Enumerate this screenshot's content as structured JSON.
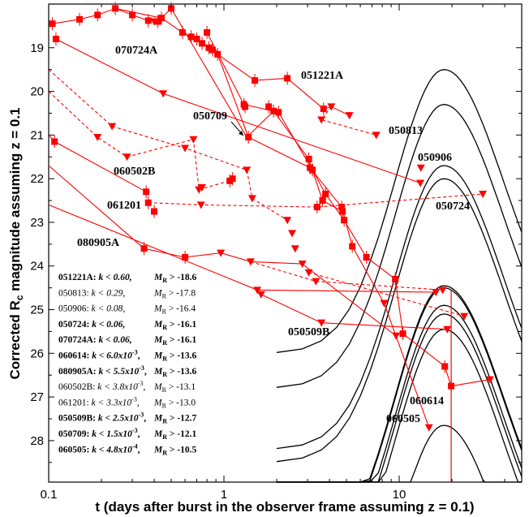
{
  "chart_data": {
    "type": "scatter",
    "xlabel": "t (days after burst in the observer frame assuming z = 0.1)",
    "ylabel": "Corrected R_c magnitude assuming z = 0.1",
    "x_scale": "log",
    "y_inverted": true,
    "xlim": [
      0.1,
      50
    ],
    "ylim": [
      28.95,
      18.0
    ],
    "x_ticks": [
      0.1,
      1,
      10
    ],
    "x_tick_labels": [
      "0.1",
      "1",
      "10"
    ],
    "y_ticks": [
      19,
      20,
      21,
      22,
      23,
      24,
      25,
      26,
      27,
      28
    ],
    "y_tick_labels": [
      "19",
      "20",
      "21",
      "22",
      "23",
      "24",
      "25",
      "26",
      "27",
      "28"
    ],
    "marker_color": "#ff0000",
    "model_color": "#000000",
    "detections": [
      [
        0.105,
        18.45
      ],
      [
        0.15,
        18.35
      ],
      [
        0.19,
        18.25
      ],
      [
        0.24,
        18.1
      ],
      [
        0.3,
        18.25
      ],
      [
        0.37,
        18.38
      ],
      [
        0.42,
        18.4
      ],
      [
        0.44,
        18.32
      ],
      [
        0.5,
        18.1
      ],
      [
        0.58,
        18.65
      ],
      [
        0.65,
        18.75
      ],
      [
        0.7,
        18.8
      ],
      [
        0.75,
        18.9
      ],
      [
        0.8,
        18.65
      ],
      [
        0.82,
        19.0
      ],
      [
        0.86,
        19.05
      ],
      [
        0.92,
        19.15
      ],
      [
        1.5,
        19.75
      ],
      [
        2.3,
        19.7
      ],
      [
        3.7,
        20.4
      ],
      [
        0.11,
        18.8
      ],
      [
        1.3,
        20.3
      ],
      [
        1.32,
        20.35
      ],
      [
        1.8,
        20.35
      ],
      [
        1.92,
        20.45
      ],
      [
        2.05,
        20.48
      ],
      [
        1.38,
        21.05
      ],
      [
        3.1,
        21.75
      ],
      [
        3.2,
        21.8
      ],
      [
        3.05,
        21.55
      ],
      [
        3.8,
        22.35
      ],
      [
        3.65,
        22.5
      ],
      [
        4.7,
        22.65
      ],
      [
        4.75,
        22.75
      ],
      [
        4.85,
        22.95
      ],
      [
        5.4,
        23.55
      ],
      [
        6.5,
        23.8
      ],
      [
        9.5,
        24.3
      ],
      [
        0.108,
        21.15
      ],
      [
        0.36,
        22.3
      ],
      [
        0.37,
        22.55
      ],
      [
        0.4,
        22.75
      ],
      [
        1.08,
        22.05
      ],
      [
        1.12,
        22.0
      ],
      [
        0.35,
        23.6
      ],
      [
        0.6,
        23.8
      ],
      [
        3.4,
        22.65
      ],
      [
        10.5,
        25.55
      ],
      [
        18.2,
        26.3
      ],
      [
        19.8,
        26.75
      ]
    ],
    "upper_limits": [
      [
        0.23,
        20.8
      ],
      [
        0.45,
        20.05
      ],
      [
        0.6,
        21.3
      ],
      [
        1.35,
        21.8
      ],
      [
        1.45,
        22.45
      ],
      [
        2.3,
        22.95
      ],
      [
        2.45,
        23.25
      ],
      [
        2.55,
        23.6
      ],
      [
        2.8,
        23.95
      ],
      [
        3.05,
        24.15
      ],
      [
        3.35,
        24.35
      ],
      [
        0.19,
        21.05
      ],
      [
        0.28,
        21.5
      ],
      [
        0.67,
        21.1
      ],
      [
        0.72,
        22.25
      ],
      [
        0.75,
        22.2
      ],
      [
        0.74,
        22.6
      ],
      [
        0.96,
        23.7
      ],
      [
        1.42,
        23.9
      ],
      [
        1.55,
        24.55
      ],
      [
        1.63,
        24.65
      ],
      [
        3.6,
        25.3
      ],
      [
        8.2,
        24.85
      ],
      [
        9.6,
        25.6
      ],
      [
        14.8,
        27.7
      ],
      [
        16.2,
        24.6
      ],
      [
        17.7,
        24.55
      ],
      [
        18.8,
        25.45
      ],
      [
        23.5,
        25.15
      ],
      [
        33.0,
        26.6
      ],
      [
        4.1,
        20.35
      ],
      [
        3.6,
        20.65
      ],
      [
        5.2,
        20.55
      ],
      [
        7.4,
        21.0
      ],
      [
        13.2,
        22.1
      ],
      [
        13.3,
        21.75
      ],
      [
        30.0,
        22.35
      ],
      [
        0.4,
        18.4
      ]
    ],
    "grb_labels": [
      "070724A",
      "051221A",
      "050709",
      "050813",
      "050906",
      "060502B",
      "061201",
      "050724",
      "080905A",
      "050509B",
      "060614",
      "060505"
    ],
    "legend": [
      {
        "name": "051221A:",
        "k": "k < 0.60,",
        "m": "M",
        "msub": "R",
        "mval": " > -18.6",
        "bold": true
      },
      {
        "name": "050813:",
        "k": "k < 0.29,",
        "m": "M",
        "msub": "R",
        "mval": " > -17.8",
        "bold": false
      },
      {
        "name": "050906:",
        "k": "k < 0.08,",
        "m": "M",
        "msub": "R",
        "mval": " > -16.4",
        "bold": false
      },
      {
        "name": "050724:",
        "k": "k < 0.06,",
        "m": "M",
        "msub": "R",
        "mval": " > -16.1",
        "bold": true
      },
      {
        "name": "070724A:",
        "k": "k < 0.06,",
        "m": "M",
        "msub": "R",
        "mval": " > -16.1",
        "bold": true
      },
      {
        "name": "060614:",
        "k": "k < 6.0x10",
        "ksup": "-3",
        "m": "M",
        "msub": "R",
        "mval": " > -13.6",
        "bold": true
      },
      {
        "name": "080905A:",
        "k": "k < 5.5x10",
        "ksup": "-3",
        "m": "M",
        "msub": "R",
        "mval": " > -13.6",
        "bold": true
      },
      {
        "name": "060502B:",
        "k": "k < 3.8x10",
        "ksup": "-3",
        "m": "M",
        "msub": "R",
        "mval": " > -13.1",
        "bold": false
      },
      {
        "name": "061201:",
        "k": "k < 3.3x10",
        "ksup": "-3",
        "m": "M",
        "msub": "R",
        "mval": " > -13.0",
        "bold": false
      },
      {
        "name": "050509B:",
        "k": "k < 2.5x10",
        "ksup": "-3",
        "m": "M",
        "msub": "R",
        "mval": " > -12.7",
        "bold": true
      },
      {
        "name": "050709:",
        "k": "k < 1.5x10",
        "ksup": "-3",
        "m": "M",
        "msub": "R",
        "mval": " > -12.1",
        "bold": true
      },
      {
        "name": "060505:",
        "k": "k < 4.8x10",
        "ksup": "-4",
        "m": "M",
        "msub": "R",
        "mval": " > -10.5",
        "bold": true
      }
    ],
    "model_peak_time": 18,
    "model_peaks": [
      19.5,
      20.3,
      21.7,
      22.0,
      24.45,
      24.5,
      24.9,
      25.1,
      25.45,
      27.65
    ]
  }
}
